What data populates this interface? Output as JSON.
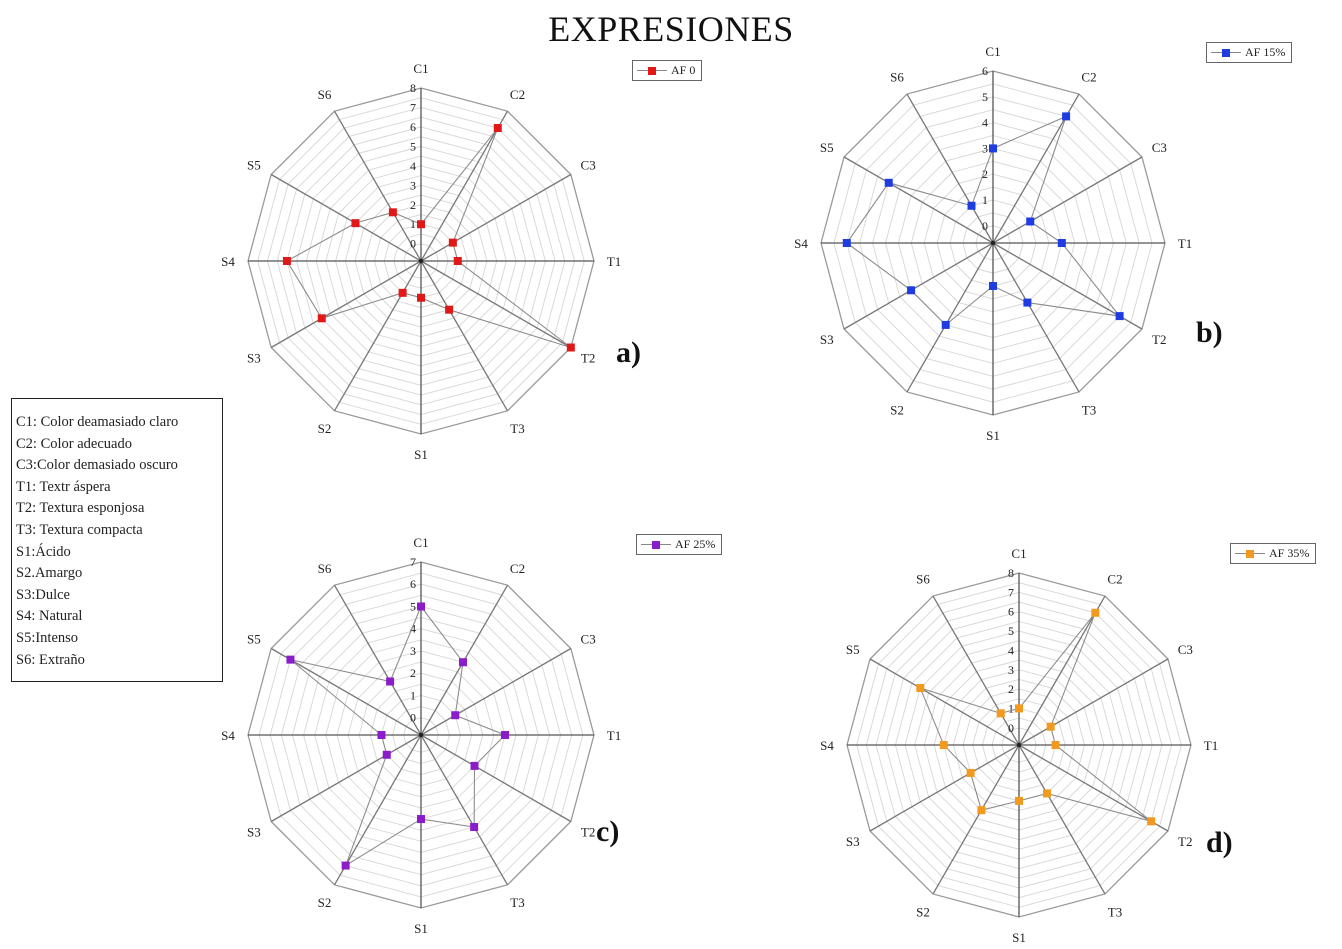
{
  "title": "EXPRESIONES",
  "abbreviations": [
    "C1: Color deamasiado claro",
    "C2: Color adecuado",
    "C3:Color demasiado oscuro",
    "T1: Textr áspera",
    "T2: Textura esponjosa",
    "T3: Textura compacta",
    "S1:Ácido",
    "S2.Amargo",
    "S3:Dulce",
    "S4: Natural",
    "S5:Intenso",
    "S6: Extraño"
  ],
  "chart_data": [
    {
      "type": "radar",
      "panel": "a)",
      "categories": [
        "C1",
        "C2",
        "C3",
        "T1",
        "T2",
        "T3",
        "S1",
        "S2",
        "S3",
        "S4",
        "S5",
        "S6"
      ],
      "rmax": 8,
      "ticks": [
        "0",
        "1",
        "2",
        "3",
        "4",
        "5",
        "6",
        "7",
        "8"
      ],
      "series": [
        {
          "name": "AF 0",
          "values": [
            1,
            7,
            1,
            1,
            8,
            2,
            1,
            1,
            5,
            6,
            3,
            2
          ]
        }
      ],
      "color": "#e01818",
      "legend": "top-right"
    },
    {
      "type": "radar",
      "panel": "b)",
      "categories": [
        "C1",
        "C2",
        "C3",
        "T1",
        "T2",
        "T3",
        "S1",
        "S2",
        "S3",
        "S4",
        "S5",
        "S6"
      ],
      "rmax": 6,
      "ticks": [
        "0",
        "1",
        "2",
        "3",
        "4",
        "5",
        "6"
      ],
      "series": [
        {
          "name": "AF 15%",
          "values": [
            3,
            5,
            1,
            2,
            5,
            2,
            1,
            3,
            3,
            5,
            4,
            1
          ]
        }
      ],
      "color": "#1e3ce0",
      "legend": "top-right"
    },
    {
      "type": "radar",
      "panel": "c)",
      "categories": [
        "C1",
        "C2",
        "C3",
        "T1",
        "T2",
        "T3",
        "S1",
        "S2",
        "S3",
        "S4",
        "S5",
        "S6"
      ],
      "rmax": 7,
      "ticks": [
        "0",
        "1",
        "2",
        "3",
        "4",
        "5",
        "6",
        "7"
      ],
      "series": [
        {
          "name": "AF 25%",
          "values": [
            5,
            3,
            1,
            3,
            2,
            4,
            3,
            6,
            1,
            1,
            6,
            2
          ]
        }
      ],
      "color": "#8a1ccc",
      "legend": "top-right"
    },
    {
      "type": "radar",
      "panel": "d)",
      "categories": [
        "C1",
        "C2",
        "C3",
        "T1",
        "T2",
        "T3",
        "S1",
        "S2",
        "S3",
        "S4",
        "S5",
        "S6"
      ],
      "rmax": 8,
      "ticks": [
        "0",
        "1",
        "2",
        "3",
        "4",
        "5",
        "6",
        "7",
        "8"
      ],
      "series": [
        {
          "name": "AF 35%",
          "values": [
            1,
            7,
            1,
            1,
            7,
            2,
            2,
            3,
            2,
            3,
            5,
            1
          ]
        }
      ],
      "color": "#f29a1e",
      "legend": "top-right"
    }
  ]
}
